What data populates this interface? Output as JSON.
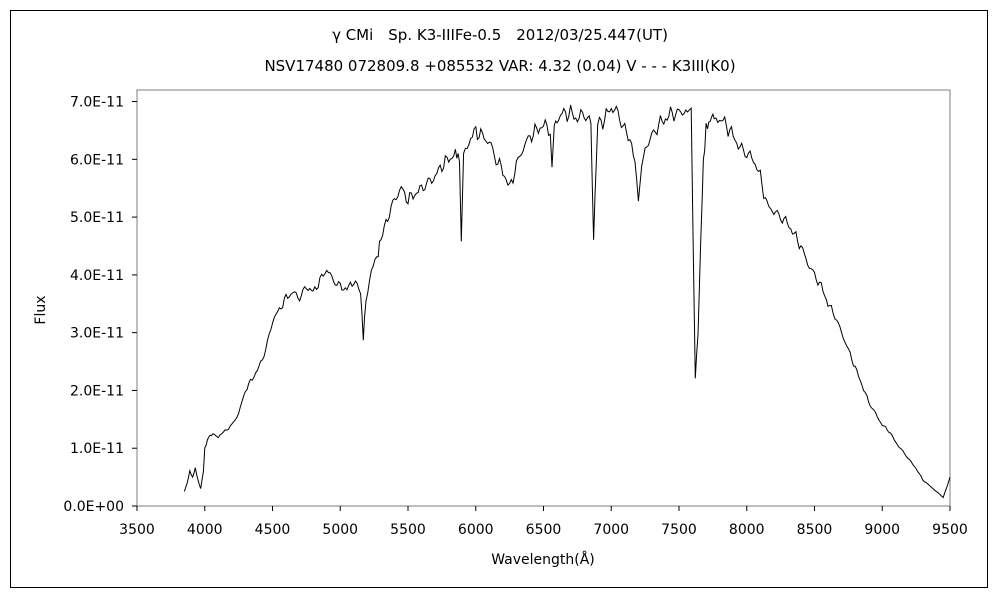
{
  "chart_data": {
    "type": "line",
    "title": "γ CMi　Sp. K3-IIIFe-0.5　2012/03/25.447(UT)",
    "subtitle": "NSV17480 072809.8 +085532 VAR: 4.32 (0.04) V - - - K3III(K0)",
    "xlabel": "Wavelength(Å)",
    "ylabel": "Flux",
    "xlim": [
      3500,
      9500
    ],
    "ylim": [
      0,
      7.2e-11
    ],
    "grid": false,
    "x_ticks": [
      3500,
      4000,
      4500,
      5000,
      5500,
      6000,
      6500,
      7000,
      7500,
      8000,
      8500,
      9000,
      9500
    ],
    "x_tick_labels": [
      "3500",
      "4000",
      "4500",
      "5000",
      "5500",
      "6000",
      "6500",
      "7000",
      "7500",
      "8000",
      "8500",
      "9000",
      "9500"
    ],
    "y_ticks": [
      0,
      1e-11,
      2e-11,
      3e-11,
      4e-11,
      5e-11,
      6e-11,
      7e-11
    ],
    "y_tick_labels": [
      "0.0E+00",
      "1.0E-11",
      "2.0E-11",
      "3.0E-11",
      "4.0E-11",
      "5.0E-11",
      "6.0E-11",
      "7.0E-11"
    ],
    "line_color": "#000000",
    "series": [
      {
        "x": [
          3850,
          3870,
          3890,
          3910,
          3930,
          3950,
          3970,
          3990,
          4000,
          4030,
          4060,
          4100,
          4150,
          4200,
          4250,
          4300,
          4350,
          4400,
          4450,
          4500,
          4550,
          4600,
          4650,
          4700,
          4750,
          4800,
          4850,
          4900,
          4950,
          5000,
          5050,
          5100,
          5150,
          5170,
          5190,
          5230,
          5270,
          5300,
          5350,
          5400,
          5450,
          5500,
          5550,
          5600,
          5650,
          5700,
          5750,
          5800,
          5850,
          5880,
          5893,
          5910,
          5950,
          6000,
          6050,
          6100,
          6150,
          6200,
          6250,
          6300,
          6350,
          6400,
          6450,
          6500,
          6550,
          6563,
          6580,
          6600,
          6650,
          6700,
          6750,
          6800,
          6850,
          6870,
          6890,
          6900,
          6950,
          7000,
          7050,
          7100,
          7150,
          7200,
          7250,
          7300,
          7350,
          7400,
          7450,
          7500,
          7550,
          7590,
          7605,
          7620,
          7640,
          7660,
          7680,
          7700,
          7730,
          7760,
          7800,
          7850,
          7900,
          7950,
          8000,
          8050,
          8100,
          8150,
          8200,
          8250,
          8300,
          8350,
          8400,
          8450,
          8500,
          8550,
          8600,
          8650,
          8700,
          8750,
          8800,
          8850,
          8900,
          8950,
          9000,
          9050,
          9100,
          9150,
          9200,
          9250,
          9300,
          9350,
          9400,
          9450,
          9480,
          9500
        ],
        "y": [
          2.5e-12,
          4e-12,
          6e-12,
          5e-12,
          6.5e-12,
          4.5e-12,
          3e-12,
          6e-12,
          1e-11,
          1.2e-11,
          1.25e-11,
          1.2e-11,
          1.3e-11,
          1.4e-11,
          1.6e-11,
          2e-11,
          2.2e-11,
          2.4e-11,
          2.7e-11,
          3.2e-11,
          3.4e-11,
          3.6e-11,
          3.7e-11,
          3.6e-11,
          3.8e-11,
          3.7e-11,
          3.9e-11,
          4.1e-11,
          3.9e-11,
          3.8e-11,
          3.75e-11,
          3.9e-11,
          3.7e-11,
          2.9e-11,
          3.6e-11,
          4.1e-11,
          4.3e-11,
          4.6e-11,
          5e-11,
          5.3e-11,
          5.5e-11,
          5.3e-11,
          5.4e-11,
          5.5e-11,
          5.6e-11,
          5.7e-11,
          5.9e-11,
          6e-11,
          6.1e-11,
          6e-11,
          4.6e-11,
          6.1e-11,
          6.3e-11,
          6.5e-11,
          6.4e-11,
          6.3e-11,
          6e-11,
          5.8e-11,
          5.5e-11,
          5.9e-11,
          6.2e-11,
          6.4e-11,
          6.5e-11,
          6.6e-11,
          6.5e-11,
          5.9e-11,
          6.6e-11,
          6.7e-11,
          6.8e-11,
          6.8e-11,
          6.7e-11,
          6.8e-11,
          6.6e-11,
          4.6e-11,
          6e-11,
          6.6e-11,
          6.7e-11,
          6.9e-11,
          6.8e-11,
          6.5e-11,
          6.3e-11,
          5.4e-11,
          6.2e-11,
          6.4e-11,
          6.6e-11,
          6.7e-11,
          6.8e-11,
          6.8e-11,
          6.85e-11,
          6.8e-11,
          4.5e-11,
          2.2e-11,
          3e-11,
          4.5e-11,
          6e-11,
          6.5e-11,
          6.7e-11,
          6.75e-11,
          6.7e-11,
          6.6e-11,
          6.4e-11,
          6.2e-11,
          6.1e-11,
          6e-11,
          5.7e-11,
          5.2e-11,
          5.1e-11,
          5e-11,
          4.9e-11,
          4.7e-11,
          4.5e-11,
          4.2e-11,
          4e-11,
          3.8e-11,
          3.5e-11,
          3.3e-11,
          3e-11,
          2.7e-11,
          2.4e-11,
          2.1e-11,
          1.8e-11,
          1.6e-11,
          1.4e-11,
          1.3e-11,
          1.1e-11,
          9.5e-12,
          8e-12,
          6.5e-12,
          4.5e-12,
          3.5e-12,
          2.5e-12,
          1.5e-12,
          3.5e-12,
          5e-12
        ]
      }
    ]
  }
}
